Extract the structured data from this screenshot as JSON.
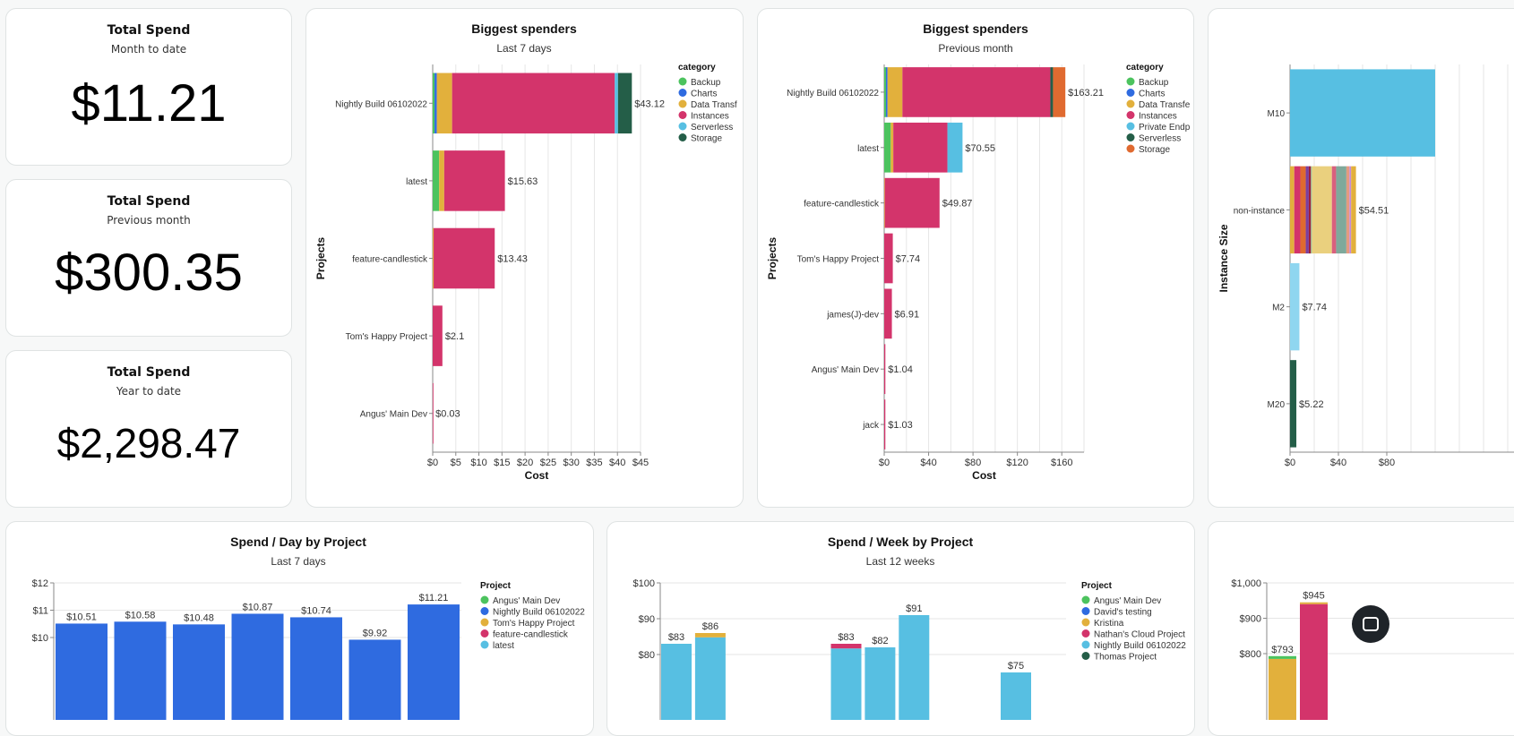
{
  "stats": [
    {
      "title": "Total Spend",
      "subtitle": "Month to date",
      "value": "$11.21"
    },
    {
      "title": "Total Spend",
      "subtitle": "Previous month",
      "value": "$300.35"
    },
    {
      "title": "Total Spend",
      "subtitle": "Year to date",
      "value": "$2,298.47"
    }
  ],
  "chat_icon": "chat-bubble-icon",
  "chart_data": [
    {
      "type": "bar",
      "orientation": "horizontal",
      "stacked": true,
      "title": "Biggest spenders",
      "subtitle": "Last 7 days",
      "xlabel": "Cost",
      "ylabel": "Projects",
      "xlim": [
        0,
        45
      ],
      "xticks": [
        "$0",
        "$5",
        "$10",
        "$15",
        "$20",
        "$25",
        "$30",
        "$35",
        "$40",
        "$45"
      ],
      "grid": true,
      "legend_position": "top-right",
      "legend_title": "category",
      "legend": [
        {
          "name": "Backup",
          "color": "#4cc35e"
        },
        {
          "name": "Charts",
          "color": "#2f6be0"
        },
        {
          "name": "Data Transf",
          "color": "#e2b03c"
        },
        {
          "name": "Instances",
          "color": "#d3346b"
        },
        {
          "name": "Serverless",
          "color": "#57bfe2"
        },
        {
          "name": "Storage",
          "color": "#245e48"
        }
      ],
      "categories": [
        "Nightly Build 06102022",
        "latest",
        "feature-candlestick",
        "Tom's Happy Project",
        "Angus' Main Dev"
      ],
      "labels": [
        "$43.12",
        "$15.63",
        "$13.43",
        "$2.1",
        "$0.03"
      ],
      "series": [
        {
          "name": "Backup",
          "values": [
            0.4,
            1.4,
            0,
            0,
            0
          ]
        },
        {
          "name": "Charts",
          "values": [
            0.5,
            0,
            0,
            0,
            0
          ]
        },
        {
          "name": "Data Transf",
          "values": [
            3.3,
            1.1,
            0.2,
            0,
            0
          ]
        },
        {
          "name": "Instances",
          "values": [
            35.22,
            13.13,
            13.23,
            2.1,
            0.03
          ]
        },
        {
          "name": "Serverless",
          "values": [
            0.7,
            0,
            0,
            0,
            0
          ]
        },
        {
          "name": "Storage",
          "values": [
            3.0,
            0,
            0,
            0,
            0
          ]
        }
      ]
    },
    {
      "type": "bar",
      "orientation": "horizontal",
      "stacked": true,
      "title": "Biggest spenders",
      "subtitle": "Previous month",
      "xlabel": "Cost",
      "ylabel": "Projects",
      "xlim": [
        0,
        180
      ],
      "xticks": [
        "$0",
        "$40",
        "$80",
        "$120",
        "$160"
      ],
      "grid": true,
      "legend_position": "top-right",
      "legend_title": "category",
      "legend": [
        {
          "name": "Backup",
          "color": "#4cc35e"
        },
        {
          "name": "Charts",
          "color": "#2f6be0"
        },
        {
          "name": "Data Transfe",
          "color": "#e2b03c"
        },
        {
          "name": "Instances",
          "color": "#d3346b"
        },
        {
          "name": "Private Endp",
          "color": "#57bfe2"
        },
        {
          "name": "Serverless",
          "color": "#245e48"
        },
        {
          "name": "Storage",
          "color": "#e06a30"
        }
      ],
      "categories": [
        "Nightly Build 06102022",
        "latest",
        "feature-candlestick",
        "Tom's Happy Project",
        "james(J)-dev",
        "Angus' Main Dev",
        "jack"
      ],
      "labels": [
        "$163.21",
        "$70.55",
        "$49.87",
        "$7.74",
        "$6.91",
        "$1.04",
        "$1.03"
      ],
      "series": [
        {
          "name": "Backup",
          "values": [
            1.6,
            5.9,
            0,
            0,
            0,
            0,
            0
          ]
        },
        {
          "name": "Charts",
          "values": [
            1.4,
            0,
            0,
            0,
            0,
            0,
            0
          ]
        },
        {
          "name": "Data Transfe",
          "values": [
            13.4,
            2.3,
            0.5,
            0,
            0,
            0,
            0
          ]
        },
        {
          "name": "Instances",
          "values": [
            133.3,
            48.75,
            49.37,
            7.74,
            6.91,
            1.04,
            1.03
          ]
        },
        {
          "name": "Private Endp",
          "values": [
            0,
            13.6,
            0,
            0,
            0,
            0,
            0
          ]
        },
        {
          "name": "Serverless",
          "values": [
            2.4,
            0,
            0,
            0,
            0,
            0,
            0
          ]
        },
        {
          "name": "Storage",
          "values": [
            11.1,
            0,
            0,
            0,
            0,
            0,
            0
          ]
        }
      ]
    },
    {
      "type": "bar",
      "orientation": "horizontal",
      "stacked": true,
      "ylabel": "Instance Size",
      "xticks": [
        "$0",
        "$40",
        "$80"
      ],
      "grid": true,
      "categories": [
        "M10",
        "non-instance",
        "M2",
        "M20"
      ],
      "labels": [
        "",
        "$54.51",
        "$7.74",
        "$5.22"
      ],
      "segments": [
        [
          {
            "value": 120,
            "color": "#57bfe2"
          }
        ],
        [
          {
            "value": 3.5,
            "color": "#e2b03c"
          },
          {
            "value": 5,
            "color": "#d3346b"
          },
          {
            "value": 4.5,
            "color": "#e06a30"
          },
          {
            "value": 2.5,
            "color": "#7b3fa0"
          },
          {
            "value": 1.8,
            "color": "#a0203a"
          },
          {
            "value": 0.8,
            "color": "#9bd4a0"
          },
          {
            "value": 16.5,
            "color": "#ead07e"
          },
          {
            "value": 3.5,
            "color": "#d9607e"
          },
          {
            "value": 8.5,
            "color": "#7fa99b"
          },
          {
            "value": 2.5,
            "color": "#e59a80"
          },
          {
            "value": 1.4,
            "color": "#c58bd8"
          },
          {
            "value": 4.01,
            "color": "#e2b03c"
          }
        ],
        [
          {
            "value": 7.74,
            "color": "#8fd6f0"
          }
        ],
        [
          {
            "value": 5.22,
            "color": "#245e48"
          }
        ]
      ]
    },
    {
      "type": "bar",
      "stacked": true,
      "title": "Spend / Day by Project",
      "subtitle": "Last 7 days",
      "yticks": [
        "$10",
        "$11",
        "$12"
      ],
      "ylim_top": 12,
      "grid": true,
      "legend_position": "right",
      "legend_title": "Project",
      "legend": [
        {
          "name": "Angus' Main Dev",
          "color": "#4cc35e"
        },
        {
          "name": "Nightly Build 06102022",
          "color": "#2f6be0"
        },
        {
          "name": "Tom's Happy Project",
          "color": "#e2b03c"
        },
        {
          "name": "feature-candlestick",
          "color": "#d3346b"
        },
        {
          "name": "latest",
          "color": "#57bfe2"
        }
      ],
      "values": [
        10.51,
        10.58,
        10.48,
        10.87,
        10.74,
        9.92,
        11.21
      ],
      "labels": [
        "$10.51",
        "$10.58",
        "$10.48",
        "$10.87",
        "$10.74",
        "$9.92",
        "$11.21"
      ]
    },
    {
      "type": "bar",
      "stacked": true,
      "title": "Spend / Week by Project",
      "subtitle": "Last 12 weeks",
      "yticks": [
        "$80",
        "$90",
        "$100"
      ],
      "ylim_top": 100,
      "grid": true,
      "legend_position": "right",
      "legend_title": "Project",
      "legend": [
        {
          "name": "Angus' Main Dev",
          "color": "#4cc35e"
        },
        {
          "name": "David's testing",
          "color": "#2f6be0"
        },
        {
          "name": "Kristina",
          "color": "#e2b03c"
        },
        {
          "name": "Nathan's Cloud Project",
          "color": "#d3346b"
        },
        {
          "name": "Nightly Build 06102022",
          "color": "#57bfe2"
        },
        {
          "name": "Thomas Project",
          "color": "#245e48"
        }
      ],
      "weeks": [
        {
          "label": "$83",
          "segments": [
            {
              "value": 83,
              "color": "#57bfe2"
            }
          ]
        },
        {
          "label": "$86",
          "segments": [
            {
              "value": 84.8,
              "color": "#57bfe2"
            },
            {
              "value": 1.2,
              "color": "#e2b03c"
            }
          ]
        },
        null,
        null,
        null,
        {
          "label": "$83",
          "segments": [
            {
              "value": 81.7,
              "color": "#57bfe2"
            },
            {
              "value": 1.3,
              "color": "#d3346b"
            }
          ]
        },
        {
          "label": "$82",
          "segments": [
            {
              "value": 82,
              "color": "#57bfe2"
            }
          ]
        },
        {
          "label": "$91",
          "segments": [
            {
              "value": 91,
              "color": "#57bfe2"
            }
          ]
        },
        null,
        null,
        {
          "label": "$75",
          "segments": [
            {
              "value": 75,
              "color": "#57bfe2"
            }
          ]
        },
        null
      ]
    },
    {
      "type": "bar",
      "stacked": true,
      "yticks": [
        "$800",
        "$900",
        "$1,000"
      ],
      "ylim_top": 1000,
      "grid": true,
      "bars": [
        {
          "label": "$793",
          "segments": [
            {
              "value": 785,
              "color": "#e2b03c"
            },
            {
              "value": 8,
              "color": "#4cc35e"
            }
          ]
        },
        {
          "label": "$945",
          "segments": [
            {
              "value": 940,
              "color": "#d3346b"
            },
            {
              "value": 5,
              "color": "#e2b03c"
            }
          ]
        }
      ]
    }
  ]
}
